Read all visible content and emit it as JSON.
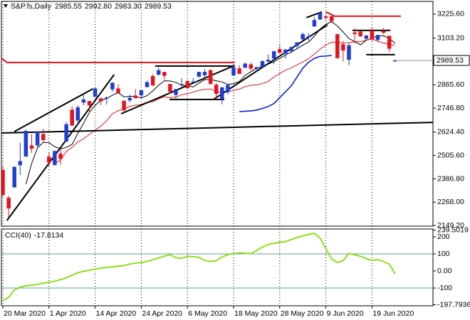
{
  "chart_data": [
    {
      "type": "candlestick",
      "title": "S&P.fs,Daily",
      "categories": [
        "20 Mar 2020",
        null,
        null,
        null,
        null,
        null,
        null,
        null,
        "1 Apr 2020",
        null,
        null,
        null,
        null,
        null,
        null,
        null,
        "14 Apr 2020",
        null,
        null,
        null,
        null,
        null,
        null,
        null,
        "24 Apr 2020",
        null,
        null,
        null,
        null,
        null,
        null,
        null,
        "6 May 2020",
        null,
        null,
        null,
        null,
        null,
        null,
        null,
        "18 May 2020",
        null,
        null,
        null,
        null,
        null,
        null,
        null,
        "28 May 2020",
        null,
        null,
        null,
        null,
        null,
        null,
        null,
        "9 Jun 2020",
        null,
        null,
        null,
        null,
        null,
        null,
        null,
        "19 Jun 2020",
        null,
        null,
        null,
        null
      ],
      "open": [
        2431,
        2290,
        2344,
        2457,
        2501,
        2556,
        2558,
        2614,
        2499,
        2458,
        2514,
        2578,
        2738,
        2685,
        2776,
        2782,
        2805,
        2795,
        2799,
        2843,
        2846,
        2784,
        2787,
        2810,
        2813,
        2855,
        2909,
        2918,
        2930,
        2869,
        2815,
        2868,
        2883,
        2878,
        2908,
        2915,
        2939,
        2865,
        2794,
        2829,
        2914,
        2948,
        2953,
        2969,
        2949,
        2955,
        2985,
        3000,
        3046,
        3025,
        3038,
        3064,
        3098,
        3112,
        3163,
        3199,
        3213,
        3213,
        3123,
        3071,
        2994,
        3131,
        3136,
        3101,
        3141,
        3095,
        3138,
        3114,
        2985.55
      ],
      "high": [
        2453,
        2300,
        2449,
        2571,
        2637,
        2615,
        2631,
        2641,
        2522,
        2533,
        2538,
        2677,
        2756,
        2760,
        2818,
        2783,
        2851,
        2801,
        2806,
        2879,
        2868,
        2785,
        2815,
        2844,
        2842,
        2887,
        2921,
        2954,
        2930,
        2869,
        2844,
        2898,
        2891,
        2901,
        2932,
        2945,
        2945,
        2875,
        2852,
        2865,
        2968,
        2965,
        2980,
        2978,
        2956,
        2990,
        3021,
        3036,
        3068,
        3049,
        3063,
        3081,
        3131,
        3129,
        3211,
        3233,
        3223,
        3223,
        3123,
        3089,
        3079,
        3154,
        3141,
        3121,
        3155,
        3120,
        3155,
        3115,
        2992.8
      ],
      "low": [
        2295,
        2191,
        2344,
        2407,
        2500,
        2520,
        2545,
        2571,
        2447,
        2455,
        2459,
        2574,
        2657,
        2663,
        2762,
        2721,
        2805,
        2761,
        2765,
        2830,
        2821,
        2728,
        2775,
        2797,
        2794,
        2852,
        2860,
        2912,
        2892,
        2821,
        2797,
        2853,
        2847,
        2876,
        2902,
        2903,
        2869,
        2793,
        2766,
        2816,
        2913,
        2922,
        2953,
        2938,
        2933,
        2950,
        2980,
        2970,
        3023,
        2999,
        3031,
        3052,
        3091,
        3090,
        3163,
        3196,
        3193,
        3181,
        2999,
        2984,
        2965,
        3076,
        3108,
        3094,
        3083,
        3083,
        3124,
        3032,
        2983.3
      ],
      "close": [
        2305,
        2237,
        2447,
        2476,
        2630,
        2541,
        2627,
        2585,
        2471,
        2527,
        2489,
        2664,
        2659,
        2750,
        2790,
        2762,
        2846,
        2783,
        2800,
        2875,
        2823,
        2737,
        2799,
        2798,
        2837,
        2878,
        2863,
        2939,
        2912,
        2831,
        2843,
        2868,
        2849,
        2881,
        2930,
        2930,
        2870,
        2820,
        2852,
        2863,
        2954,
        2922,
        2972,
        2949,
        2955,
        2985,
        2992,
        3036,
        3030,
        3044,
        3056,
        3081,
        3123,
        3112,
        3194,
        3232,
        3207,
        3190,
        3002,
        3041,
        3066,
        3125,
        3113,
        3115,
        3098,
        3118,
        3131,
        3050,
        2989.53
      ],
      "ohlc_labels": {
        "open": "2985.55",
        "high": "2992.80",
        "low": "2983.30",
        "close": "2989.53"
      },
      "up_color": "#1f3fd0",
      "down_color": "#e3141e",
      "ylim": [
        2146,
        3290
      ],
      "yticks": [
        {
          "value": 3225.6,
          "label": "3225.60"
        },
        {
          "value": 3103.2,
          "label": "3103.20"
        },
        {
          "value": 2865.6,
          "label": "2865.60"
        },
        {
          "value": 2746.8,
          "label": "2746.80"
        },
        {
          "value": 2624.4,
          "label": "2624.40"
        },
        {
          "value": 2505.6,
          "label": "2505.60"
        },
        {
          "value": 2386.8,
          "label": "2386.80"
        },
        {
          "value": 2268,
          "label": "2268.00"
        },
        {
          "value": 2149.2,
          "label": "2149.20"
        }
      ],
      "series": [
        {
          "color": "#000000",
          "values": [
            null,
            null,
            null,
            null,
            2359,
            2466,
            2544,
            2572,
            2571,
            2550,
            2540,
            2547,
            2562,
            2618,
            2670,
            2725,
            2761,
            2786,
            2796,
            2813,
            2825,
            2804,
            2807,
            2806,
            2799,
            2810,
            2835,
            2863,
            2886,
            2885,
            2878,
            2863,
            2861,
            2854,
            2874,
            2892,
            2892,
            2886,
            2880,
            2867,
            2872,
            2882,
            2913,
            2932,
            2950,
            2957,
            2971,
            2983,
            3000,
            3017,
            3032,
            3049,
            3067,
            3083,
            3113,
            3149,
            3174,
            3187,
            3165,
            3134,
            3101,
            3085,
            3069,
            3092,
            3103,
            3114,
            3115,
            3102,
            3077
          ]
        },
        {
          "color": "#e3141e",
          "values": [
            null,
            null,
            null,
            null,
            null,
            null,
            null,
            null,
            null,
            2465,
            2483,
            2526,
            2547,
            2575,
            2591,
            2613,
            2635,
            2655,
            2683,
            2718,
            2734,
            2742,
            2756,
            2761,
            2766,
            2777,
            2779,
            2794,
            2805,
            2800,
            2802,
            2815,
            2820,
            2828,
            2837,
            2843,
            2844,
            2832,
            2826,
            2829,
            2838,
            2843,
            2856,
            2863,
            2865,
            2871,
            2883,
            2905,
            2923,
            2941,
            2951,
            2967,
            2982,
            2998,
            3022,
            3047,
            3068,
            3083,
            3080,
            3079,
            3080,
            3085,
            3085,
            3093,
            3099,
            3088,
            3078,
            3072,
            3067
          ]
        },
        {
          "color": "#0a1fd6",
          "values": [
            null,
            null,
            null,
            null,
            null,
            null,
            null,
            null,
            null,
            null,
            null,
            null,
            null,
            null,
            null,
            null,
            null,
            null,
            null,
            null,
            null,
            null,
            null,
            null,
            null,
            null,
            null,
            null,
            null,
            null,
            null,
            null,
            null,
            null,
            null,
            null,
            null,
            null,
            null,
            null,
            null,
            2729,
            2731,
            2733,
            2737,
            2745,
            2755,
            2770,
            2800,
            2830,
            2860,
            2905,
            2950,
            2980,
            3000,
            3010,
            3012,
            3015,
            null,
            null,
            null,
            null,
            null,
            null,
            null,
            null,
            null,
            null,
            null
          ]
        }
      ],
      "drawings": [
        {
          "color": "#000000",
          "x": [
            0.7,
            19.3
          ],
          "y": [
            2174.5,
            2917.5
          ]
        },
        {
          "color": "#000000",
          "x": [
            2,
            15.6
          ],
          "y": [
            2627.6,
            2845
          ]
        },
        {
          "color": "#000000",
          "x": [
            20.5,
            40.2
          ],
          "y": [
            2718,
            2964.6
          ]
        },
        {
          "color": "#000000",
          "x": [
            36.5,
            56.3
          ],
          "y": [
            2790.7,
            3171
          ]
        },
        {
          "color": "#000000",
          "x": [
            52.6,
            55.3
          ],
          "y": [
            3207.5,
            3236.5
          ]
        },
        {
          "color": "#000000",
          "x": [
            -0.5,
            75
          ],
          "y": [
            2620,
            2674.7
          ]
        },
        {
          "color": "#000000",
          "x": [
            26.4,
            40.2
          ],
          "y": [
            2961,
            2961
          ]
        },
        {
          "color": "#000000",
          "x": [
            28.9,
            38.4
          ],
          "y": [
            2790.7,
            2790.7
          ]
        },
        {
          "color": "#000000",
          "x": [
            60.6,
            67.2
          ],
          "y": [
            3142.2,
            3142.2
          ]
        },
        {
          "color": "#000000",
          "x": [
            63,
            68
          ],
          "y": [
            3019,
            3019
          ]
        },
        {
          "color": "#e3141e",
          "x": [
            -0.5,
            0.7,
            40.2
          ],
          "y": [
            3008,
            2979,
            2979
          ]
        },
        {
          "color": "#e3141e",
          "x": [
            56,
            57.5,
            69
          ],
          "y": [
            3236.8,
            3215,
            3215
          ]
        }
      ]
    },
    {
      "type": "line",
      "title": "CCI(40)",
      "series": [
        {
          "color": "#7fe000",
          "values": [
            -175,
            -155,
            -112,
            -95,
            -87,
            -84,
            -78,
            -72,
            -66,
            -60,
            -51,
            -40,
            -25,
            -10,
            -2,
            4,
            11,
            17,
            21,
            24,
            28,
            32,
            40,
            46,
            50,
            56,
            65,
            77,
            87,
            95,
            78,
            74,
            86,
            84,
            80,
            62,
            55,
            60,
            82,
            96,
            102,
            106,
            104,
            101,
            120,
            140,
            155,
            162,
            168,
            172,
            184,
            196,
            205,
            214,
            221,
            192,
            130,
            70,
            50,
            60,
            104,
            95,
            86,
            72,
            62,
            66,
            55,
            40,
            -17.8134
          ]
        }
      ],
      "ylim": [
        -204,
        246
      ],
      "yticks": [
        200,
        100,
        {
          "value": 0,
          "label": "0.00"
        },
        -100,
        239.5019,
        -197.7936
      ],
      "levels": [
        100,
        -100
      ],
      "level_color": "#5f9ea0"
    }
  ]
}
